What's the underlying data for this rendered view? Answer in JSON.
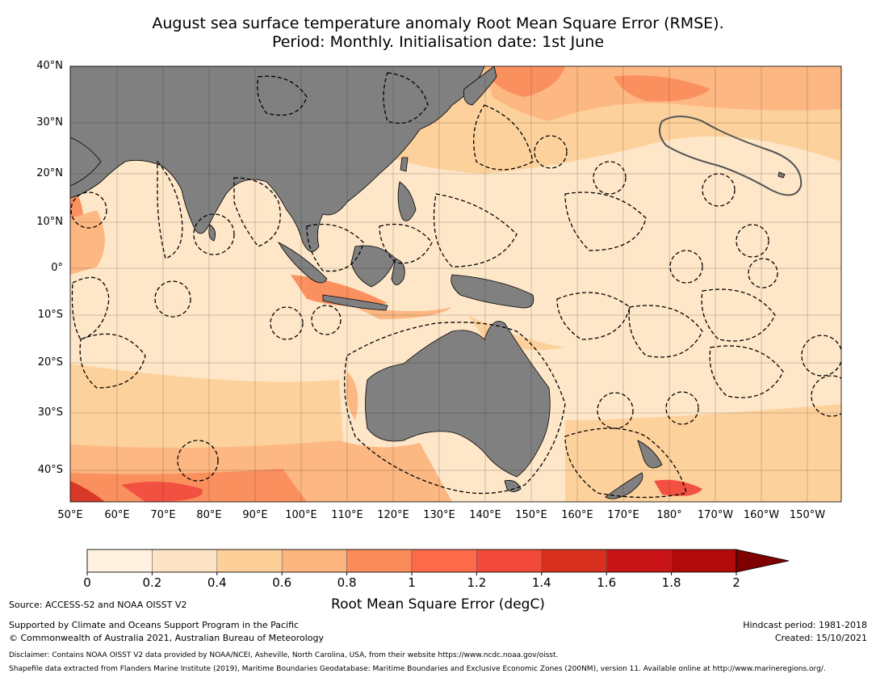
{
  "title": {
    "line1": "August sea surface temperature anomaly Root Mean Square Error (RMSE).",
    "line2": "Period: Monthly. Initialisation date: 1st June"
  },
  "map": {
    "lat_labels": [
      "40°N",
      "30°N",
      "20°N",
      "10°N",
      "0°",
      "10°S",
      "20°S",
      "30°S",
      "40°S"
    ],
    "lon_labels": [
      "50°E",
      "60°E",
      "70°E",
      "80°E",
      "90°E",
      "100°E",
      "110°E",
      "120°E",
      "130°E",
      "140°E",
      "150°E",
      "160°E",
      "170°E",
      "180°",
      "170°W",
      "160°W",
      "150°W"
    ],
    "land_color": "#808080",
    "ocean_base_color": "#fee6c8",
    "eez_boundaries": "dashed",
    "highlight_outline": "Hawaii EEZ"
  },
  "colorbar": {
    "ticks": [
      "0",
      "0.2",
      "0.4",
      "0.6",
      "0.8",
      "1",
      "1.2",
      "1.4",
      "1.6",
      "1.8",
      "2"
    ],
    "colors": [
      "#fff2e0",
      "#fee4c6",
      "#fdd09a",
      "#fcb57f",
      "#fb8c5a",
      "#fc6a4a",
      "#f24a3a",
      "#d7301f",
      "#c81416",
      "#b00a0a",
      "#7f0000"
    ],
    "extend": "max",
    "label": "Root Mean Square Error (degC)"
  },
  "footer": {
    "source": "Source: ACCESS-S2 and NOAA OISST V2",
    "support": "Supported by Climate and Oceans Support Program in the Pacific",
    "copyright": "© Commonwealth of Australia 2021, Australian Bureau of Meteorology",
    "hindcast": "Hindcast period: 1981-2018",
    "created": "Created: 15/10/2021",
    "disclaimer": "Disclaimer: Contains NOAA OISST V2 data provided by NOAA/NCEI, Asheville, North Carolina, USA, from their website https://www.ncdc.noaa.gov/oisst.",
    "shapefile": "Shapefile data extracted from Flanders Marine Institute (2019), Maritime Boundaries Geodatabase: Maritime Boundaries and Exclusive Economic Zones (200NM), version 11. Available online at http://www.marineregions.org/."
  }
}
